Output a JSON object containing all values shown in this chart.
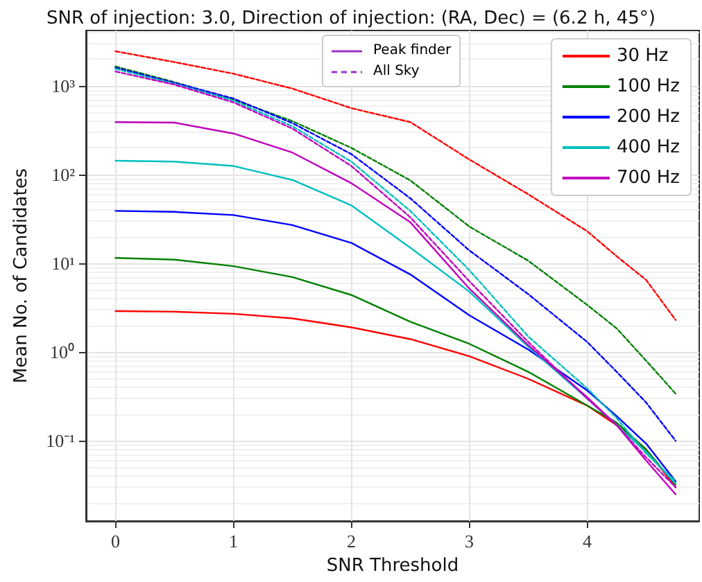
{
  "chart_data": {
    "type": "line",
    "title": "SNR of injection: 3.0, Direction of injection: (RA, Dec) = (6.2 h, 45°)",
    "xlabel": "SNR Threshold",
    "ylabel": "Mean No. of Candidates",
    "annotations": [
      "Peak finder",
      "All Sky"
    ],
    "x": [
      0,
      0.5,
      1,
      1.5,
      2,
      2.5,
      3,
      3.5,
      4,
      4.25,
      4.5,
      4.75
    ],
    "series": [
      {
        "name": "30 Hz",
        "color": "#ff0000",
        "line_style": "solid",
        "values": [
          2.9,
          2.85,
          2.7,
          2.4,
          1.9,
          1.4,
          0.9,
          0.5,
          0.25,
          0.15,
          0.08,
          0.03
        ]
      },
      {
        "name": "100 Hz",
        "color": "#008000",
        "line_style": "solid",
        "values": [
          11.5,
          11,
          9.3,
          7,
          4.4,
          2.2,
          1.24,
          0.6,
          0.25,
          0.16,
          0.08,
          0.032
        ]
      },
      {
        "name": "200 Hz",
        "color": "#0000ff",
        "line_style": "solid",
        "values": [
          39,
          38,
          35,
          27,
          17,
          7.5,
          2.6,
          1.07,
          0.37,
          0.19,
          0.093,
          0.035
        ]
      },
      {
        "name": "400 Hz",
        "color": "#00bfbf",
        "line_style": "solid",
        "values": [
          143,
          140,
          125,
          87,
          45,
          15,
          4.8,
          1.15,
          0.3,
          0.15,
          0.075,
          0.033
        ]
      },
      {
        "name": "700 Hz",
        "color": "#bf00bf",
        "line_style": "solid",
        "values": [
          390,
          385,
          290,
          177,
          80,
          29,
          5.2,
          1.2,
          0.31,
          0.15,
          0.06,
          0.025
        ]
      },
      {
        "color": "#ff0000",
        "line_style": "dashed",
        "values": [
          2450,
          1850,
          1370,
          930,
          560,
          390,
          148,
          60,
          23,
          12,
          6.5,
          2.3
        ]
      },
      {
        "color": "#008000",
        "line_style": "dashed",
        "values": [
          1650,
          1100,
          700,
          400,
          200,
          86,
          26,
          10.7,
          3.4,
          1.85,
          0.8,
          0.34
        ]
      },
      {
        "color": "#0000ff",
        "line_style": "dashed",
        "values": [
          1600,
          1080,
          720,
          380,
          170,
          54,
          14,
          4.5,
          1.3,
          0.6,
          0.27,
          0.1
        ]
      },
      {
        "color": "#00bfbf",
        "line_style": "dashed",
        "values": [
          1550,
          1050,
          680,
          350,
          140,
          39,
          8.4,
          1.5,
          0.39,
          0.18,
          0.072,
          0.035
        ]
      },
      {
        "color": "#bf00bf",
        "line_style": "dashed",
        "values": [
          1450,
          1030,
          650,
          330,
          125,
          33,
          6.3,
          1.3,
          0.3,
          0.15,
          0.065,
          0.03
        ]
      }
    ],
    "xlim": [
      -0.25,
      4.95
    ],
    "xticks": [
      0,
      1,
      2,
      3,
      4
    ],
    "ylim": [
      0.0125,
      4200
    ],
    "yticks": [
      {
        "value": 0.1,
        "label": "10⁻¹"
      },
      {
        "value": 1,
        "label": "10⁰"
      },
      {
        "value": 10,
        "label": "10¹"
      },
      {
        "value": 100,
        "label": "10²"
      },
      {
        "value": 1000,
        "label": "10³"
      }
    ],
    "log": "y",
    "grid": true,
    "legend": "top right",
    "marker": "none"
  }
}
